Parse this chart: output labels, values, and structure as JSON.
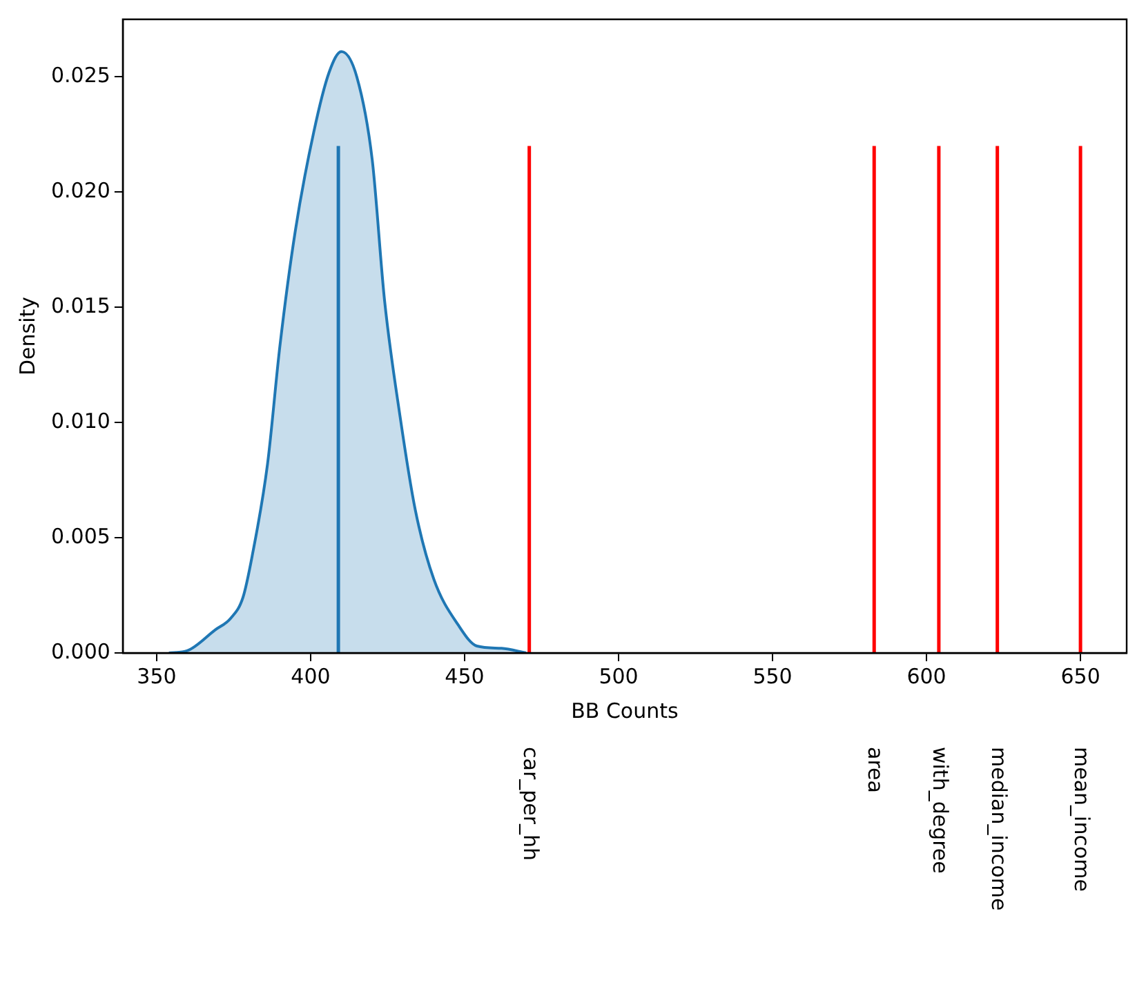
{
  "chart_data": {
    "type": "area",
    "xlabel": "BB Counts",
    "ylabel": "Density",
    "grid": false,
    "legend": false,
    "xlim": [
      339,
      665
    ],
    "xticks": [
      350,
      400,
      450,
      500,
      550,
      600,
      650
    ],
    "ylim": [
      0,
      0.0275
    ],
    "yticks": [
      {
        "value": 0,
        "label": "0.000"
      },
      {
        "value": 0.005,
        "label": "0.005"
      },
      {
        "value": 0.01,
        "label": "0.010"
      },
      {
        "value": 0.015,
        "label": "0.015"
      },
      {
        "value": 0.02,
        "label": "0.020"
      },
      {
        "value": 0.025,
        "label": "0.025"
      }
    ],
    "series": [
      {
        "type": "area",
        "color": "#1f77b4",
        "x": [
          354,
          360,
          369,
          374,
          378,
          381,
          386,
          390,
          395,
          401,
          406,
          410,
          415,
          420,
          424,
          429,
          434,
          440,
          448,
          454,
          462,
          470
        ],
        "values": [
          0,
          0.0001,
          0.001,
          0.0015,
          0.0024,
          0.0042,
          0.0082,
          0.0133,
          0.0183,
          0.0226,
          0.0252,
          0.0261,
          0.025,
          0.0214,
          0.0153,
          0.0103,
          0.0062,
          0.0032,
          0.0012,
          0.0003,
          0.0002,
          0
        ]
      },
      {
        "type": "line",
        "color": "#1f77b4",
        "x": [
          409,
          409
        ],
        "values": [
          0,
          0.022
        ]
      },
      {
        "type": "line",
        "name": "car_per_hh",
        "color": "#ff0000",
        "x": [
          471,
          471
        ],
        "values": [
          0,
          0.022
        ]
      },
      {
        "type": "line",
        "name": "area",
        "color": "#ff0000",
        "x": [
          583,
          583
        ],
        "values": [
          0,
          0.022
        ]
      },
      {
        "type": "line",
        "name": "with_degree",
        "color": "#ff0000",
        "x": [
          604,
          604
        ],
        "values": [
          0,
          0.022
        ]
      },
      {
        "type": "line",
        "name": "median_income",
        "color": "#ff0000",
        "x": [
          623,
          623
        ],
        "values": [
          0,
          0.022
        ]
      },
      {
        "type": "line",
        "name": "mean_income",
        "color": "#ff0000",
        "x": [
          650,
          650
        ],
        "values": [
          0,
          0.022
        ]
      }
    ]
  }
}
